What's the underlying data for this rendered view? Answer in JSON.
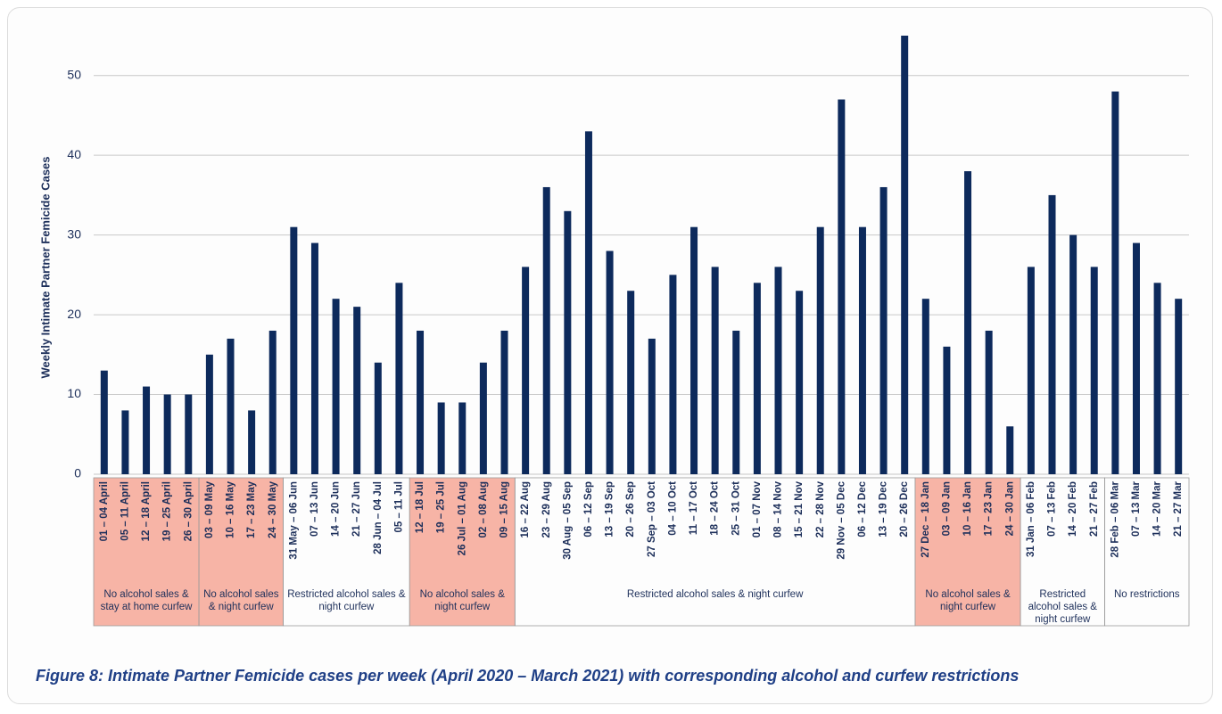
{
  "chart_data": {
    "type": "bar",
    "y_label": "Weekly Intimate Partner Femicide Cases",
    "caption": "Figure 8: Intimate Partner Femicide cases per week (April 2020 – March 2021) with corresponding alcohol and curfew restrictions",
    "color": "#0d2a5c",
    "ylim": [
      0,
      55
    ],
    "yticks": [
      0,
      10,
      20,
      30,
      40,
      50
    ],
    "grid": true,
    "groups": [
      {
        "label": "No alcohol sales & stay at home curfew",
        "color": "#f7b4a6",
        "categories": [
          "01 – 04 April",
          "05 – 11 April",
          "12 – 18 April",
          "19 – 25 April",
          "26 – 30 April"
        ],
        "values": [
          13,
          8,
          11,
          10,
          10
        ]
      },
      {
        "label": "No alcohol sales & night curfew",
        "color": "#f7b4a6",
        "categories": [
          "03 – 09 May",
          "10 – 16 May",
          "17 – 23 May",
          "24 – 30 May"
        ],
        "values": [
          15,
          17,
          8,
          18
        ]
      },
      {
        "label": "Restricted alcohol sales & night curfew",
        "categories": [
          "31 May – 06 Jun",
          "07 – 13 Jun",
          "14 – 20 Jun",
          "21 – 27 Jun",
          "28 Jun – 04 Jul",
          "05 – 11 Jul"
        ],
        "values": [
          31,
          29,
          22,
          21,
          14,
          24
        ]
      },
      {
        "label": "No alcohol sales & night curfew",
        "color": "#f7b4a6",
        "categories": [
          "12 – 18 Jul",
          "19 – 25 Jul",
          "26 Jul – 01 Aug",
          "02 – 08 Aug",
          "09 – 15 Aug"
        ],
        "values": [
          18,
          9,
          9,
          14,
          18
        ]
      },
      {
        "label": "Restricted alcohol sales & night curfew",
        "categories": [
          "16 – 22 Aug",
          "23 – 29 Aug",
          "30 Aug – 05 Sep",
          "06 – 12 Sep",
          "13 – 19 Sep",
          "20 – 26 Sep",
          "27 Sep – 03 Oct",
          "04 – 10 Oct",
          "11 – 17 Oct",
          "18 – 24 Oct",
          "25 – 31 Oct",
          "01 – 07 Nov",
          "08 – 14 Nov",
          "15 – 21 Nov",
          "22 – 28 Nov",
          "29 Nov – 05 Dec",
          "06 – 12 Dec",
          "13 – 19 Dec",
          "20 – 26 Dec"
        ],
        "values": [
          26,
          36,
          33,
          43,
          28,
          23,
          17,
          25,
          31,
          26,
          18,
          24,
          26,
          23,
          31,
          47,
          31,
          36,
          55
        ]
      },
      {
        "label": "No alcohol sales & night curfew",
        "color": "#f7b4a6",
        "categories": [
          "27 Dec – 18 Jan",
          "03 – 09 Jan",
          "10 – 16 Jan",
          "17 – 23 Jan",
          "24 – 30 Jan"
        ],
        "values": [
          22,
          16,
          38,
          18,
          6
        ]
      },
      {
        "label": "Restricted alcohol sales & night curfew",
        "categories": [
          "31 Jan – 06 Feb",
          "07 – 13 Feb",
          "14 – 20 Feb",
          "21 – 27 Feb"
        ],
        "values": [
          26,
          35,
          30,
          26
        ]
      },
      {
        "label": "No restrictions",
        "categories": [
          "28 Feb – 06 Mar",
          "07 – 13 Mar",
          "14 – 20 Mar",
          "21 – 27 Mar"
        ],
        "values": [
          48,
          29,
          24,
          22
        ]
      }
    ]
  }
}
